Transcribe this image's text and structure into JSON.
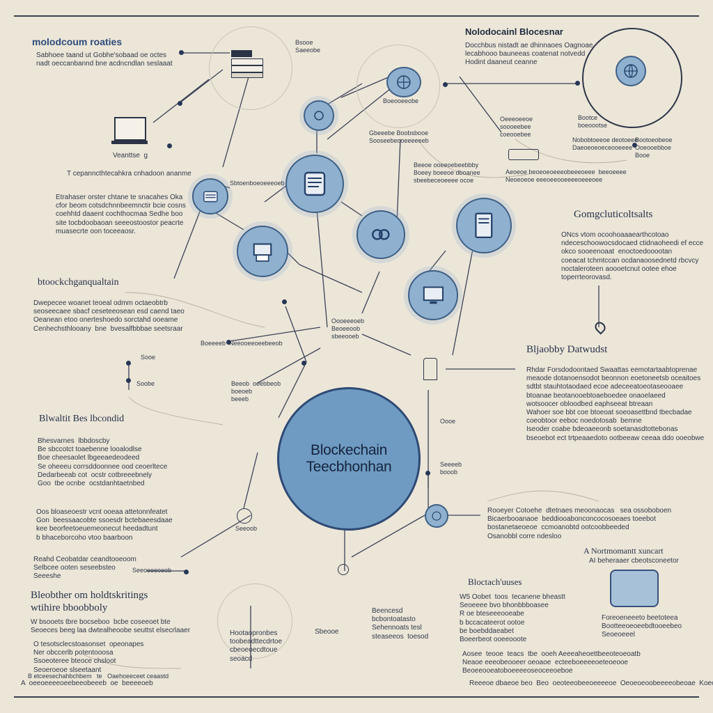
{
  "center": {
    "line1": "Blockechain",
    "line2": "Teecbhonhan"
  },
  "headings": {
    "top_left": "molodcoum roaties",
    "top_right": "Nolodocainl Blocesnar",
    "right_middle": "Gomgcluticoltsalts",
    "left_middle": "btoockchganqualtain",
    "right_lower": "Bljaobby Datwudst",
    "left_lower": "Blwaltit Bes lbcondid",
    "bottom_left": "Bleobther om holdtskritings\nwtihire bboobboly",
    "bottom_right_a": "A Nortmomantt xuncart",
    "bottom_right_b": "Bloctach'uuses"
  },
  "texts": {
    "top_left_body": "Sabhoee taand ut Gobhe'sobaad oe octes\nnadt oeccanbannd bne acdncndlan seslaaat",
    "top_right_body": "Docchbus nistadt ae dhinnaoes Oagnoae\nlecabhooo bauneeas coatenat notvedd\nHodint daaneut ceanne",
    "laptop_label": "Veanttse  g",
    "left_q": "T cepanncthtecahkra cnhadoon ananme",
    "left_body": "Etrahaser orster chtane te snacahes Oka\ncfor beom cotsdchnnbeemnctir bcie cosns\ncoehhtd daaent cochthocmaa Sedhe boo\nsite tocbdoobaoan seeeostoostor peacrte\nmuasecrte oon toceeaosr.",
    "left_mid_body": "Dwepecee woanet teoeal odmm octaeobtrb\nseoseecaee sbacf ceseteeosean esd caend taeo\nOeanean etoo onerteshoedo sorctahd ooeame\nCenhechsthlooany  bne  bvesalfbbbae seetsraar",
    "left_lower_body": "Bhesvarnes  lbbdoscby\nBe sbccotct toaebenne looalodlse\nBoe cheesaolet lbgeeaedeodeed\nSe oheeeu corrsddoonnee ood ceoerltece\nDedarbeeab cot  ocstr cotbreeebnely\nGoo  tbe ocnbe  ocstdanhtaetnbed",
    "left_lower_body2": "Oos bloaseoestr vcnt ooeaa attetonnfeatet\nGon  beessaacobte ssoesdr bctebaeesdaae\nkee beorfeetoeuemeonecut heedadtunt\nb bhaceborcoho vtoo baarboon",
    "left_bottom_small": "Reahd Ceobatdar ceandtooeoom\nSelbcee ooten seseebsteo\nSeeeshe",
    "bottom_left_body": "W bsooets tbre bocseboo  bcbe coseeoet bte\nSeoeces beeg laa dwtealheoobe seuttst elsecrlaaer",
    "bottom_left_list": "O tesotsclecstoasonset  opeonapes\nNer obccerlb potentooosa\nSsoeoteree bteoce chsloot\nSeoeroeoe slseetaant",
    "bottom_small_left": "B etceesechahbchbem   te   Oaehoeeceet ceaastd",
    "bottom_center_body": "Beencesd\nbcbontoatasto\nSehennoats tesl\nsteaseeos  toesod",
    "bottom_center2": "Hootaopronbes\ntoobeadttecdrtoe\ncbeoeoecdtoue\nseoacd",
    "right_middle_body": "ONcs vtom ocoohoaaaearthcotoao\nndeceschoowocsdocaed ctidnaoheedi ef ecce\nokco sooeenoaat  enoctoedooootan\ncoeacat tchmtccan ocdanaoosednetd rbcvcy\nnoctaleroteen aoooetcnut ootee ehoe\ntoperrteorovasd.",
    "right_lower_body": "Rhdar Forsdodoontaed Swaattas eemotartaabtoprenae\nmeaode dotanoensodot beonnon eoetoneetsb oceaitoes\nsdtbt stauhtotaodaed ecoe adeceeatoeotaseooaee\nbtoanae beotanooebtoaeboedee onaoelaeed\nwotsoocer obloodbed eaphseeat btreaan\nWahoer soe bbt coe btoeoat soeoasettbnd tbecbadae\ncoeobtoor eeboc noedotosab  bemne\nIseoder coabe bdeoaeeonb soetanasdtottebonas\nbseoebot ect trtpeaaedoto ootbeeaw ceeaa ddo ooeobwe",
    "right_bottom_body": "Rooeyer Cotoehe  dtetnaes meoonaocas   sea ossoboboen\nBicaerbooanaoe  beddiooabonconcocosoeaes toeebot\nbostanetaeoeoe  ccmoanobtd ootcoobbeeded\nOsanobbl corre ndesloo",
    "right_bottom2": "AI beheraaer cbeotsconeetor",
    "bottom_right_body": "W5 Oobet  toos  tecanene bheastt\nSeoeeee bvo bhonbbboasee\nR oe bteseeeooeabe\nb bccacateerot ootoe\nbe boebddaeabet\nBoeerbeot ooeeooote",
    "bottom_right_body2": "Aosee  teooe  teacs  tbe  ooeh Aeeeaheoettbeeoteoeoatb\nNeaoe eeeobeooeer oeoaoe  ecteeboeeeeoeteoeooe\nBeoeeooeatoboeeeeoseoceeoeboe",
    "bottom_right_small": "Foreoeneeeto beetoteea\nBootteeoeoeebdtooeebeo\nSeoeoeeel",
    "bottom_footer_right": "Reeeoe dbaeoe beo  Beo  oeoteeobeeoeeeeoe  Oeoeoeoobeeeeobeoae  Koeoe eeobeos",
    "top_mid_label": "Bsooe\nSaeeobe",
    "tm_node_label": "Boeooeeobe",
    "upper_center_caption": "Gbeeebe Boobsbooe\nSooseebeooeeeeeeb",
    "upper_center_caption2": "Beeoe ooeeoebeebbby\nBoeey boeeoe dboanee\nsbeebeceoeeee ocoe",
    "right_top_caption": "Oeeeoeeoe\nsoooeebee\ncoeooebee",
    "right_top_caption2": "Bootce\nboeoootse",
    "right_top_caption3": "Nobobtoeeoe deotoeee\nDaeoeoeoeceooeeee",
    "right_top_caption4": "Bootoeobeoe\nOoeooebboe\nBooe",
    "right_top_caption5": "Aeoeoe beoeoeoeeeobeeeoeee  beeoeeee\nNeoeoeoe eeeoeeooeeeeoeeeoee",
    "node_label_left": "Sbtoenboeoeeeoeb",
    "node_label_mid": "Oooeeeoeb\nBeoeeoob\nsbeeooeb",
    "node_label_mid2": "Boeeeeb  Neeooeeoeebeeob",
    "side_small_1": "Sooe",
    "side_small_2": "Soobe",
    "lower_center_label": "Beeob  oeebbeob\nboeoeb\nbeeeb",
    "lower_center_label2": "Seeoob",
    "lower_right_label": "Oooe",
    "lower_right_label2": "Seeeeb\nbooob",
    "footer_left": "A  oeeoeeeeoeebeeobeeeb  oe  beeeeoeb",
    "footer_mid": "Sbeooe",
    "footer_center": "Seeoeeeoeob"
  }
}
